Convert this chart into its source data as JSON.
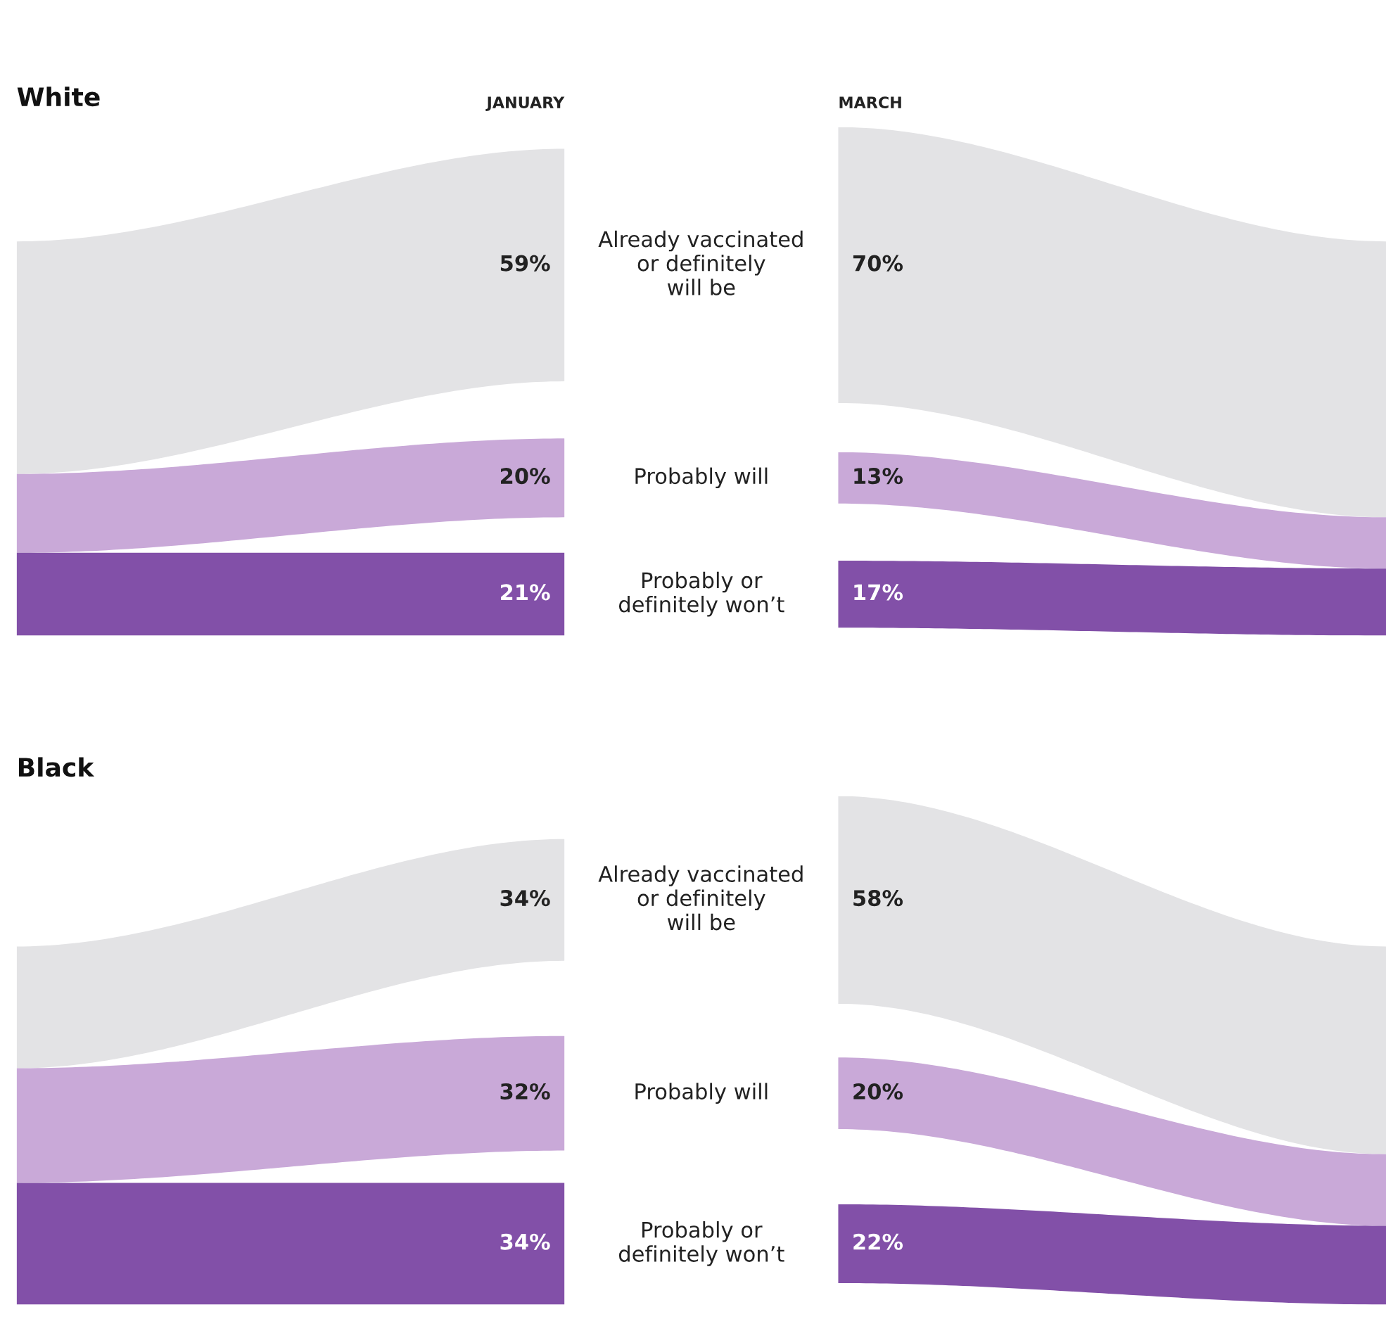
{
  "chart_data": [
    {
      "type": "other",
      "title": "White",
      "categories": [
        "Already vaccinated\nor definitely\nwill be",
        "Probably will",
        "Probably or\ndefinitely won’t"
      ],
      "series": [
        {
          "name": "JANUARY",
          "values": [
            59,
            20,
            21
          ],
          "value_labels": [
            "59%",
            "20%",
            "21%"
          ],
          "colors": [
            "#e3e3e5",
            "#c9a9d8",
            "#8250a8"
          ]
        },
        {
          "name": "MARCH",
          "values": [
            70,
            13,
            17
          ],
          "value_labels": [
            "70%",
            "13%",
            "17%"
          ],
          "colors": [
            "#e3e3e5",
            "#c9a9d8",
            "#8250a8"
          ]
        }
      ]
    },
    {
      "type": "other",
      "title": "Black",
      "categories": [
        "Already vaccinated\nor definitely\nwill be",
        "Probably will",
        "Probably or\ndefinitely won’t"
      ],
      "series": [
        {
          "values": [
            34,
            32,
            34
          ],
          "value_labels": [
            "34%",
            "32%",
            "34%"
          ],
          "colors": [
            "#e3e3e5",
            "#c9a9d8",
            "#8250a8"
          ]
        },
        {
          "values": [
            58,
            20,
            22
          ],
          "value_labels": [
            "58%",
            "20%",
            "22%"
          ],
          "colors": [
            "#e3e3e5",
            "#c9a9d8",
            "#8250a8"
          ]
        }
      ]
    }
  ]
}
